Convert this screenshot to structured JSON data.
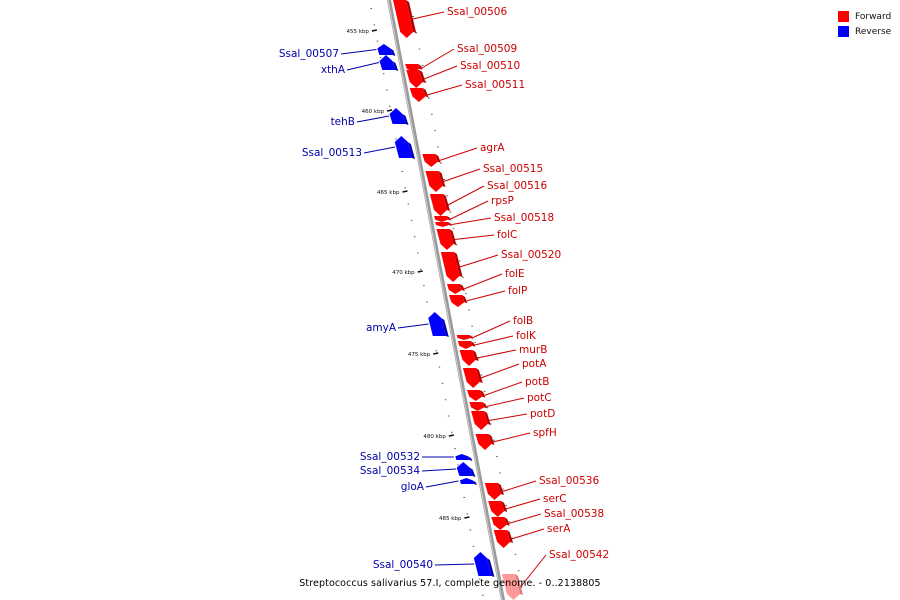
{
  "genome_title": "Streptococcus salivarius 57.I, complete genome. - 0..2138805",
  "colors": {
    "forward": "#ff0000",
    "reverse": "#0000ff",
    "selected": "#ff9999",
    "label_forward": "#cc0000",
    "label_reverse": "#0000aa",
    "backbone": "#888888"
  },
  "legend": [
    {
      "label": "Forward",
      "color": "#ff0000"
    },
    {
      "label": "Reverse",
      "color": "#0000ff"
    }
  ],
  "ticks": [
    "455 kbp",
    "460 kbp",
    "465 kbp",
    "470 kbp",
    "475 kbp",
    "480 kbp",
    "485 kbp"
  ],
  "genes": [
    {
      "name": "Ssal_00506",
      "strand": "forward"
    },
    {
      "name": "Ssal_00507",
      "strand": "reverse"
    },
    {
      "name": "xthA",
      "strand": "reverse"
    },
    {
      "name": "Ssal_00509",
      "strand": "forward"
    },
    {
      "name": "Ssal_00510",
      "strand": "forward"
    },
    {
      "name": "Ssal_00511",
      "strand": "forward"
    },
    {
      "name": "tehB",
      "strand": "reverse"
    },
    {
      "name": "Ssal_00513",
      "strand": "reverse"
    },
    {
      "name": "agrA",
      "strand": "forward"
    },
    {
      "name": "Ssal_00515",
      "strand": "forward"
    },
    {
      "name": "Ssal_00516",
      "strand": "forward"
    },
    {
      "name": "rpsP",
      "strand": "forward"
    },
    {
      "name": "Ssal_00518",
      "strand": "forward"
    },
    {
      "name": "folC",
      "strand": "forward"
    },
    {
      "name": "Ssal_00520",
      "strand": "forward"
    },
    {
      "name": "folE",
      "strand": "forward"
    },
    {
      "name": "folP",
      "strand": "forward"
    },
    {
      "name": "amyA",
      "strand": "reverse"
    },
    {
      "name": "folB",
      "strand": "forward"
    },
    {
      "name": "folK",
      "strand": "forward"
    },
    {
      "name": "murB",
      "strand": "forward"
    },
    {
      "name": "potA",
      "strand": "forward"
    },
    {
      "name": "potB",
      "strand": "forward"
    },
    {
      "name": "potC",
      "strand": "forward"
    },
    {
      "name": "potD",
      "strand": "forward"
    },
    {
      "name": "spfH",
      "strand": "forward"
    },
    {
      "name": "Ssal_00532",
      "strand": "reverse"
    },
    {
      "name": "Ssal_00534",
      "strand": "reverse"
    },
    {
      "name": "gloA",
      "strand": "reverse"
    },
    {
      "name": "Ssal_00536",
      "strand": "forward"
    },
    {
      "name": "serC",
      "strand": "forward"
    },
    {
      "name": "Ssal_00538",
      "strand": "forward"
    },
    {
      "name": "serA",
      "strand": "forward"
    },
    {
      "name": "Ssal_00540",
      "strand": "reverse"
    },
    {
      "name": "Ssal_00542",
      "strand": "forward",
      "selected": true
    }
  ]
}
